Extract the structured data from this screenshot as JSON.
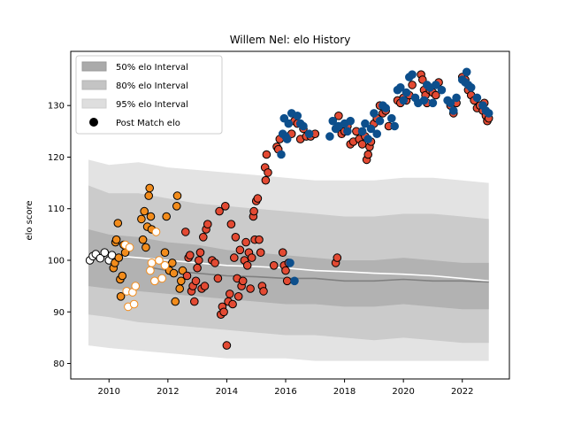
{
  "chart_data": {
    "type": "scatter",
    "title": "Willem Nel: elo History",
    "xlabel": "",
    "ylabel": "elo score",
    "xlim": [
      2008.7,
      2023.6
    ],
    "ylim": [
      77,
      140.5
    ],
    "xticks": [
      2010,
      2012,
      2014,
      2016,
      2018,
      2020,
      2022
    ],
    "yticks": [
      80,
      90,
      100,
      110,
      120,
      130
    ],
    "legend": {
      "position": "top-left",
      "entries": [
        {
          "label": "50% elo Interval",
          "color": "#aaaaaa"
        },
        {
          "label": "80% elo Interval",
          "color": "#c4c4c4"
        },
        {
          "label": "95% elo Interval",
          "color": "#dedede"
        },
        {
          "label": "Post Match elo",
          "color": "#000000"
        }
      ]
    },
    "bands": {
      "x": [
        2009.3,
        2010.0,
        2011.0,
        2012.0,
        2013.0,
        2014.0,
        2015.0,
        2016.0,
        2017.0,
        2018.0,
        2019.0,
        2020.0,
        2021.0,
        2022.0,
        2022.9
      ],
      "p95_upper": [
        119.5,
        118.5,
        119.0,
        118.0,
        117.5,
        117.0,
        116.5,
        116.0,
        115.5,
        115.5,
        115.5,
        116.0,
        116.0,
        115.5,
        115.0
      ],
      "p80_upper": [
        114.5,
        113.0,
        113.0,
        112.0,
        111.0,
        110.5,
        110.0,
        109.5,
        109.0,
        108.5,
        108.5,
        109.0,
        109.0,
        108.5,
        108.0
      ],
      "p50_upper": [
        106.0,
        105.0,
        104.5,
        103.5,
        103.0,
        102.0,
        101.5,
        101.0,
        100.5,
        100.0,
        100.0,
        100.5,
        100.0,
        99.5,
        99.5
      ],
      "p50_lower": [
        95.0,
        94.5,
        94.0,
        93.5,
        93.0,
        92.5,
        92.0,
        91.5,
        91.5,
        91.0,
        91.0,
        91.5,
        91.0,
        90.5,
        90.5
      ],
      "p80_lower": [
        89.5,
        89.0,
        88.0,
        87.5,
        87.0,
        86.5,
        86.0,
        85.5,
        85.5,
        85.0,
        84.5,
        85.0,
        84.5,
        84.0,
        84.0
      ],
      "p95_lower": [
        83.5,
        83.0,
        82.5,
        82.0,
        81.5,
        81.0,
        81.0,
        81.0,
        80.5,
        80.5,
        80.5,
        80.5,
        80.5,
        80.5,
        80.5
      ]
    },
    "median_lines": [
      {
        "name": "white-median",
        "color": "#ffffff",
        "x": [
          2009.3,
          2010.0,
          2011.0,
          2012.0,
          2013.0,
          2014.0,
          2015.0,
          2016.0,
          2017.0,
          2018.0,
          2019.0,
          2020.0,
          2021.0,
          2022.0,
          2022.9
        ],
        "y": [
          101.0,
          101.0,
          100.5,
          100.0,
          99.5,
          99.0,
          98.8,
          98.5,
          98.0,
          97.8,
          97.5,
          97.3,
          97.0,
          96.5,
          96.0
        ]
      },
      {
        "name": "gray-median",
        "color": "#808080",
        "x": [
          2011.5,
          2012.0,
          2013.0,
          2014.0,
          2015.0,
          2016.0,
          2017.0,
          2018.0,
          2019.0,
          2020.0,
          2021.0,
          2022.0,
          2022.9
        ],
        "y": [
          98.5,
          98.0,
          97.5,
          97.0,
          96.8,
          96.5,
          96.5,
          96.0,
          96.0,
          96.3,
          96.0,
          96.0,
          95.8
        ]
      }
    ],
    "series": [
      {
        "name": "early-black",
        "fill": "#ffffff",
        "edge": "#000000",
        "points": [
          [
            2009.35,
            100.0
          ],
          [
            2009.45,
            100.8
          ],
          [
            2009.55,
            101.2
          ],
          [
            2009.7,
            100.4
          ],
          [
            2009.85,
            101.5
          ],
          [
            2010.0,
            100.0
          ],
          [
            2010.1,
            101.0
          ]
        ]
      },
      {
        "name": "orange",
        "fill": "#f28c1c",
        "edge": "#000000",
        "points": [
          [
            2010.15,
            98.5
          ],
          [
            2010.2,
            99.5
          ],
          [
            2010.22,
            103.5
          ],
          [
            2010.25,
            104.0
          ],
          [
            2010.3,
            107.2
          ],
          [
            2010.33,
            100.5
          ],
          [
            2010.38,
            96.3
          ],
          [
            2010.4,
            93.0
          ],
          [
            2010.45,
            97.0
          ],
          [
            2010.5,
            103.0
          ],
          [
            2010.55,
            101.5
          ],
          [
            2011.1,
            108.0
          ],
          [
            2011.15,
            104.0
          ],
          [
            2011.2,
            109.5
          ],
          [
            2011.25,
            102.5
          ],
          [
            2011.3,
            106.5
          ],
          [
            2011.35,
            112.5
          ],
          [
            2011.38,
            114.0
          ],
          [
            2011.42,
            108.5
          ],
          [
            2011.45,
            106.0
          ],
          [
            2011.9,
            101.5
          ],
          [
            2011.95,
            108.5
          ],
          [
            2012.05,
            98.0
          ],
          [
            2012.15,
            99.5
          ],
          [
            2012.2,
            97.5
          ],
          [
            2012.25,
            92.0
          ],
          [
            2012.3,
            110.5
          ],
          [
            2012.32,
            112.5
          ],
          [
            2012.4,
            94.5
          ],
          [
            2012.45,
            96.0
          ],
          [
            2012.5,
            98.0
          ]
        ]
      },
      {
        "name": "orange-white",
        "fill": "#ffffff",
        "edge": "#f28c1c",
        "points": [
          [
            2010.55,
            103.0
          ],
          [
            2010.6,
            94.0
          ],
          [
            2010.65,
            91.0
          ],
          [
            2010.7,
            102.5
          ],
          [
            2010.8,
            93.8
          ],
          [
            2010.85,
            91.5
          ],
          [
            2010.9,
            95.0
          ],
          [
            2011.4,
            98.0
          ],
          [
            2011.45,
            99.5
          ],
          [
            2011.55,
            96.0
          ],
          [
            2011.6,
            105.5
          ],
          [
            2011.7,
            100.0
          ],
          [
            2011.8,
            96.5
          ],
          [
            2011.9,
            99.0
          ]
        ]
      },
      {
        "name": "red",
        "fill": "#e34a33",
        "edge": "#000000",
        "points": [
          [
            2012.6,
            105.5
          ],
          [
            2012.65,
            97.0
          ],
          [
            2012.7,
            100.5
          ],
          [
            2012.75,
            101.0
          ],
          [
            2012.8,
            94.0
          ],
          [
            2012.85,
            95.0
          ],
          [
            2012.9,
            92.0
          ],
          [
            2012.95,
            96.0
          ],
          [
            2013.0,
            98.5
          ],
          [
            2013.05,
            100.0
          ],
          [
            2013.1,
            101.5
          ],
          [
            2013.15,
            94.5
          ],
          [
            2013.2,
            104.5
          ],
          [
            2013.25,
            95.0
          ],
          [
            2013.3,
            106.0
          ],
          [
            2013.35,
            107.0
          ],
          [
            2013.5,
            100.0
          ],
          [
            2013.6,
            99.5
          ],
          [
            2013.7,
            96.5
          ],
          [
            2013.75,
            109.5
          ],
          [
            2013.8,
            89.5
          ],
          [
            2013.85,
            91.0
          ],
          [
            2013.9,
            90.0
          ],
          [
            2013.95,
            110.5
          ],
          [
            2014.0,
            83.5
          ],
          [
            2014.05,
            92.0
          ],
          [
            2014.1,
            93.5
          ],
          [
            2014.15,
            107.0
          ],
          [
            2014.2,
            91.5
          ],
          [
            2014.25,
            100.5
          ],
          [
            2014.3,
            104.5
          ],
          [
            2014.35,
            96.5
          ],
          [
            2014.4,
            93.0
          ],
          [
            2014.45,
            102.0
          ],
          [
            2014.5,
            95.0
          ],
          [
            2014.55,
            96.0
          ],
          [
            2014.6,
            100.0
          ],
          [
            2014.65,
            103.5
          ],
          [
            2014.7,
            99.0
          ],
          [
            2014.75,
            101.5
          ],
          [
            2014.8,
            94.5
          ],
          [
            2014.85,
            100.5
          ],
          [
            2014.9,
            108.5
          ],
          [
            2014.92,
            109.5
          ],
          [
            2014.95,
            104.0
          ],
          [
            2015.0,
            111.5
          ],
          [
            2015.05,
            112.0
          ],
          [
            2015.1,
            104.0
          ],
          [
            2015.15,
            101.5
          ],
          [
            2015.2,
            95.0
          ],
          [
            2015.25,
            94.0
          ],
          [
            2015.3,
            118.0
          ],
          [
            2015.32,
            115.5
          ],
          [
            2015.35,
            120.5
          ],
          [
            2015.4,
            117.0
          ],
          [
            2015.6,
            99.0
          ],
          [
            2015.7,
            122.0
          ],
          [
            2015.75,
            121.5
          ],
          [
            2015.8,
            123.5
          ],
          [
            2015.9,
            101.5
          ],
          [
            2015.95,
            99.0
          ],
          [
            2016.0,
            98.0
          ],
          [
            2016.05,
            96.0
          ],
          [
            2016.1,
            99.5
          ],
          [
            2016.2,
            124.5
          ],
          [
            2016.3,
            127.0
          ],
          [
            2016.4,
            126.5
          ],
          [
            2016.5,
            123.5
          ],
          [
            2016.6,
            125.5
          ],
          [
            2016.7,
            124.0
          ],
          [
            2016.85,
            124.0
          ],
          [
            2017.0,
            124.5
          ],
          [
            2017.7,
            99.5
          ],
          [
            2017.75,
            100.5
          ],
          [
            2017.8,
            128.0
          ],
          [
            2017.9,
            124.5
          ],
          [
            2018.0,
            125.0
          ],
          [
            2018.1,
            126.0
          ],
          [
            2018.2,
            122.5
          ],
          [
            2018.3,
            123.0
          ],
          [
            2018.4,
            125.0
          ],
          [
            2018.5,
            123.5
          ],
          [
            2018.6,
            122.5
          ],
          [
            2018.7,
            124.0
          ],
          [
            2018.75,
            119.5
          ],
          [
            2018.8,
            120.5
          ],
          [
            2018.85,
            122.0
          ],
          [
            2018.9,
            123.0
          ],
          [
            2019.0,
            126.5
          ],
          [
            2019.1,
            127.5
          ],
          [
            2019.2,
            130.0
          ],
          [
            2019.3,
            128.5
          ],
          [
            2019.4,
            129.0
          ],
          [
            2019.5,
            126.0
          ],
          [
            2019.8,
            131.0
          ],
          [
            2019.9,
            130.5
          ],
          [
            2020.0,
            131.5
          ],
          [
            2020.1,
            131.0
          ],
          [
            2020.2,
            132.0
          ],
          [
            2020.3,
            134.0
          ],
          [
            2020.6,
            136.0
          ],
          [
            2020.65,
            135.0
          ],
          [
            2020.7,
            133.0
          ],
          [
            2020.75,
            132.0
          ],
          [
            2020.8,
            130.5
          ],
          [
            2020.9,
            133.0
          ],
          [
            2021.0,
            132.5
          ],
          [
            2021.1,
            132.0
          ],
          [
            2021.2,
            134.5
          ],
          [
            2021.6,
            130.0
          ],
          [
            2021.7,
            128.5
          ],
          [
            2021.8,
            130.5
          ],
          [
            2022.0,
            135.5
          ],
          [
            2022.1,
            135.0
          ],
          [
            2022.2,
            133.0
          ],
          [
            2022.3,
            132.0
          ],
          [
            2022.4,
            131.0
          ],
          [
            2022.5,
            129.5
          ],
          [
            2022.6,
            130.0
          ],
          [
            2022.7,
            129.0
          ],
          [
            2022.75,
            130.5
          ],
          [
            2022.8,
            128.0
          ],
          [
            2022.85,
            127.0
          ],
          [
            2022.9,
            127.5
          ]
        ]
      },
      {
        "name": "blue",
        "fill": "#0d4f8c",
        "edge": "#0d4f8c",
        "points": [
          [
            2015.85,
            120.5
          ],
          [
            2015.9,
            124.5
          ],
          [
            2015.95,
            127.5
          ],
          [
            2016.0,
            124.0
          ],
          [
            2016.05,
            123.5
          ],
          [
            2016.1,
            126.5
          ],
          [
            2016.15,
            99.5
          ],
          [
            2016.2,
            128.5
          ],
          [
            2016.3,
            96.0
          ],
          [
            2016.4,
            128.0
          ],
          [
            2016.5,
            126.5
          ],
          [
            2016.6,
            126.0
          ],
          [
            2016.8,
            124.5
          ],
          [
            2017.5,
            124.0
          ],
          [
            2017.6,
            127.0
          ],
          [
            2017.7,
            125.5
          ],
          [
            2017.8,
            126.0
          ],
          [
            2018.0,
            126.5
          ],
          [
            2018.1,
            125.0
          ],
          [
            2018.2,
            127.0
          ],
          [
            2018.6,
            125.0
          ],
          [
            2018.7,
            126.5
          ],
          [
            2018.8,
            123.5
          ],
          [
            2018.9,
            125.5
          ],
          [
            2019.0,
            128.5
          ],
          [
            2019.1,
            124.5
          ],
          [
            2019.2,
            127.0
          ],
          [
            2019.3,
            130.0
          ],
          [
            2019.4,
            129.5
          ],
          [
            2019.6,
            127.5
          ],
          [
            2019.7,
            126.0
          ],
          [
            2019.8,
            133.0
          ],
          [
            2019.9,
            133.5
          ],
          [
            2020.0,
            131.0
          ],
          [
            2020.1,
            132.5
          ],
          [
            2020.2,
            135.5
          ],
          [
            2020.3,
            136.0
          ],
          [
            2020.4,
            131.5
          ],
          [
            2020.5,
            130.5
          ],
          [
            2020.7,
            131.0
          ],
          [
            2020.8,
            134.0
          ],
          [
            2020.9,
            133.5
          ],
          [
            2021.0,
            130.5
          ],
          [
            2021.1,
            134.0
          ],
          [
            2021.3,
            133.0
          ],
          [
            2021.5,
            131.0
          ],
          [
            2021.6,
            130.5
          ],
          [
            2021.7,
            129.0
          ],
          [
            2021.8,
            131.5
          ],
          [
            2022.0,
            135.0
          ],
          [
            2022.1,
            134.5
          ],
          [
            2022.15,
            136.5
          ],
          [
            2022.2,
            134.0
          ],
          [
            2022.3,
            133.5
          ],
          [
            2022.5,
            131.5
          ],
          [
            2022.7,
            130.0
          ],
          [
            2022.8,
            129.0
          ],
          [
            2022.9,
            128.5
          ]
        ]
      }
    ]
  }
}
